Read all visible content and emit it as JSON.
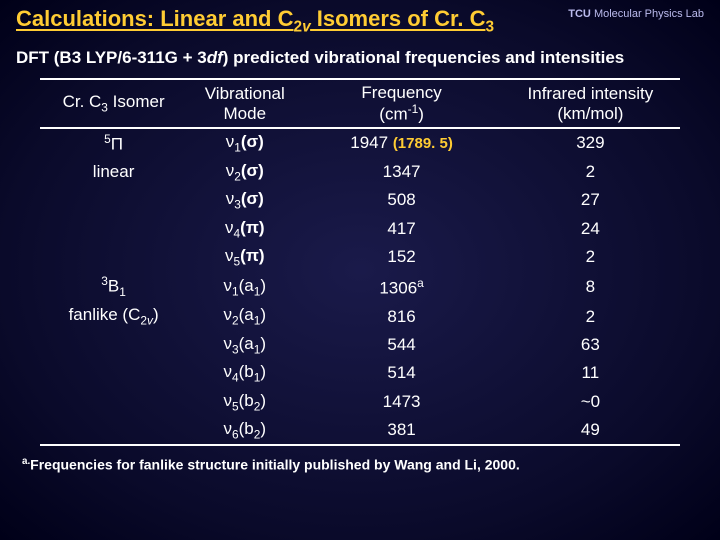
{
  "title_parts": {
    "a": "Calculations: Linear and C",
    "b": "2",
    "c": "v",
    "d": " Isomers of Cr. C",
    "e": "3"
  },
  "logo": {
    "t": "TCU",
    "u": "Molecular Physics Lab"
  },
  "subtitle": "DFT (B3 LYP/6-311G + 3df) predicted vibrational frequencies and intensities",
  "subtitle_ital": "df",
  "headers": {
    "isomer": {
      "a": "Cr. C",
      "b": "3",
      "c": " Isomer"
    },
    "mode": "Vibrational\nMode",
    "freq": {
      "a": "Frequency",
      "b": "(cm",
      "c": "-1",
      "d": ")"
    },
    "int": "Infrared intensity\n(km/mol)"
  },
  "groups": [
    {
      "isomer_lines": [
        {
          "text_a": "5",
          "text_b": "Π",
          "style": "pi"
        },
        {
          "text_a": "linear",
          "style": "plain"
        }
      ],
      "rows": [
        {
          "mode_a": "ν",
          "mode_b": "1",
          "mode_c": "(σ)",
          "freq": "1947",
          "anno": "(1789. 5)",
          "int": "329"
        },
        {
          "mode_a": "ν",
          "mode_b": "2",
          "mode_c": "(σ)",
          "freq": "1347",
          "int": "2"
        },
        {
          "mode_a": "ν",
          "mode_b": "3",
          "mode_c": "(σ)",
          "freq": "508",
          "int": "27"
        },
        {
          "mode_a": "ν",
          "mode_b": "4",
          "mode_c": "(π)",
          "freq": "417",
          "int": "24"
        },
        {
          "mode_a": "ν",
          "mode_b": "5",
          "mode_c": "(π)",
          "freq": "152",
          "int": "2"
        }
      ]
    },
    {
      "isomer_lines": [
        {
          "text_a": "3",
          "text_b": "B",
          "text_c": "1",
          "style": "term"
        },
        {
          "text_a": "fanlike (C",
          "text_b": "2",
          "text_c": "v",
          "text_d": ")",
          "style": "c2v"
        }
      ],
      "rows": [
        {
          "mode_a": "ν",
          "mode_b": "1",
          "mode_c": "(a",
          "mode_d": "1",
          "mode_e": ")",
          "freq": "1306",
          "freq_sup": "a",
          "int": "8"
        },
        {
          "mode_a": "ν",
          "mode_b": "2",
          "mode_c": "(a",
          "mode_d": "1",
          "mode_e": ")",
          "freq": "816",
          "int": "2"
        },
        {
          "mode_a": "ν",
          "mode_b": "3",
          "mode_c": "(a",
          "mode_d": "1",
          "mode_e": ")",
          "freq": "544",
          "int": "63"
        },
        {
          "mode_a": "ν",
          "mode_b": "4",
          "mode_c": "(b",
          "mode_d": "1",
          "mode_e": ")",
          "freq": "514",
          "int": "11"
        },
        {
          "mode_a": "ν",
          "mode_b": "5",
          "mode_c": "(b",
          "mode_d": "2",
          "mode_e": ")",
          "freq": "1473",
          "int": "~0"
        },
        {
          "mode_a": "ν",
          "mode_b": "6",
          "mode_c": "(b",
          "mode_d": "2",
          "mode_e": ")",
          "freq": "381",
          "int": "49"
        }
      ]
    }
  ],
  "footnote": {
    "sup": "a.",
    "text": "Frequencies for fanlike structure initially published by Wang and Li, 2000."
  }
}
